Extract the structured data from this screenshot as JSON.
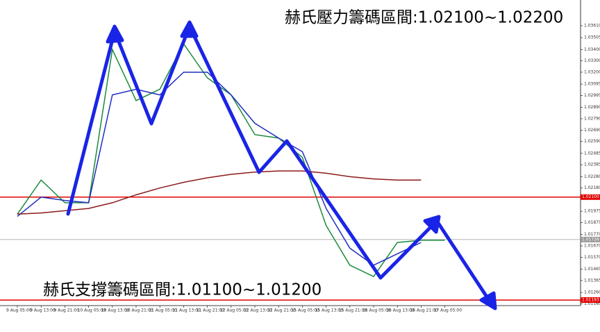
{
  "chart_data": {
    "type": "line",
    "annotations": [
      "赫氏壓力籌碼區間:1.02100~1.02200",
      "赫氏支撐籌碼區間:1.01100~1.01200"
    ],
    "categories": [
      "9 Aug 05:00",
      "9 Aug 13:00",
      "9 Aug 21:00",
      "10 Aug 05:00",
      "10 Aug 13:00",
      "10 Aug 21:00",
      "11 Aug 05:00",
      "11 Aug 13:00",
      "11 Aug 21:00",
      "12 Aug 05:00",
      "12 Aug 13:00",
      "12 Aug 21:00",
      "15 Aug 05:00",
      "15 Aug 13:00",
      "15 Aug 21:00",
      "16 Aug 05:00",
      "16 Aug 13:00",
      "16 Aug 21:00",
      "17 Aug 05:00"
    ],
    "series": [
      {
        "color": "#1a8a3a",
        "values": [
          1.0195,
          1.0225,
          1.0205,
          1.0205,
          1.034,
          1.0295,
          1.0305,
          1.0345,
          1.0315,
          1.03,
          1.0265,
          1.0262,
          1.0245,
          1.0185,
          1.015,
          1.014,
          1.017,
          1.0172,
          1.0172
        ]
      },
      {
        "color": "#1f2fbf",
        "values": [
          1.0193,
          1.021,
          1.0207,
          1.0205,
          1.03,
          1.0305,
          1.03,
          1.032,
          1.032,
          1.03,
          1.0275,
          1.0262,
          1.025,
          1.02,
          1.0165,
          1.015,
          1.016,
          1.017,
          null
        ]
      },
      {
        "color": "#8b1a1a",
        "values": [
          1.0195,
          1.0196,
          1.0198,
          1.02,
          1.0205,
          1.0212,
          1.0218,
          1.0223,
          1.0227,
          1.023,
          1.0232,
          1.0233,
          1.0233,
          1.0231,
          1.0228,
          1.0226,
          1.0225,
          1.0225,
          null
        ]
      }
    ],
    "levels": [
      {
        "value": 1.021,
        "label": "1.02100",
        "color": "#e00000"
      },
      {
        "value": 1.01726,
        "label": "1.01726",
        "color": "#999999"
      },
      {
        "value": 1.01193,
        "label": "1.01193",
        "color": "#e00000"
      }
    ],
    "ylim": [
      1.01144,
      1.03836
    ],
    "yticks": [
      {
        "value": 1.0361,
        "label": "1.03610"
      },
      {
        "value": 1.03505,
        "label": "1.03505"
      },
      {
        "value": 1.034,
        "label": "1.03400"
      },
      {
        "value": 1.033,
        "label": "1.03300"
      },
      {
        "value": 1.032,
        "label": "1.03200"
      },
      {
        "value": 1.03095,
        "label": "1.03095"
      },
      {
        "value": 1.02995,
        "label": "1.02995"
      },
      {
        "value": 1.0289,
        "label": "1.02890"
      },
      {
        "value": 1.0279,
        "label": "1.02790"
      },
      {
        "value": 1.0269,
        "label": "1.02690"
      },
      {
        "value": 1.0259,
        "label": "1.02590"
      },
      {
        "value": 1.02485,
        "label": "1.02485"
      },
      {
        "value": 1.02385,
        "label": "1.02385"
      },
      {
        "value": 1.0228,
        "label": "1.02280"
      },
      {
        "value": 1.0218,
        "label": "1.02180"
      },
      {
        "value": 1.01975,
        "label": "1.01975"
      },
      {
        "value": 1.01875,
        "label": "1.01875"
      },
      {
        "value": 1.0177,
        "label": "1.01770"
      },
      {
        "value": 1.0167,
        "label": "1.01670"
      },
      {
        "value": 1.0157,
        "label": "1.01570"
      },
      {
        "value": 1.01465,
        "label": "1.01465"
      },
      {
        "value": 1.01365,
        "label": "1.01365"
      },
      {
        "value": 1.0126,
        "label": "1.01260"
      },
      {
        "value": 1.0116,
        "label": "1.01160"
      }
    ]
  }
}
